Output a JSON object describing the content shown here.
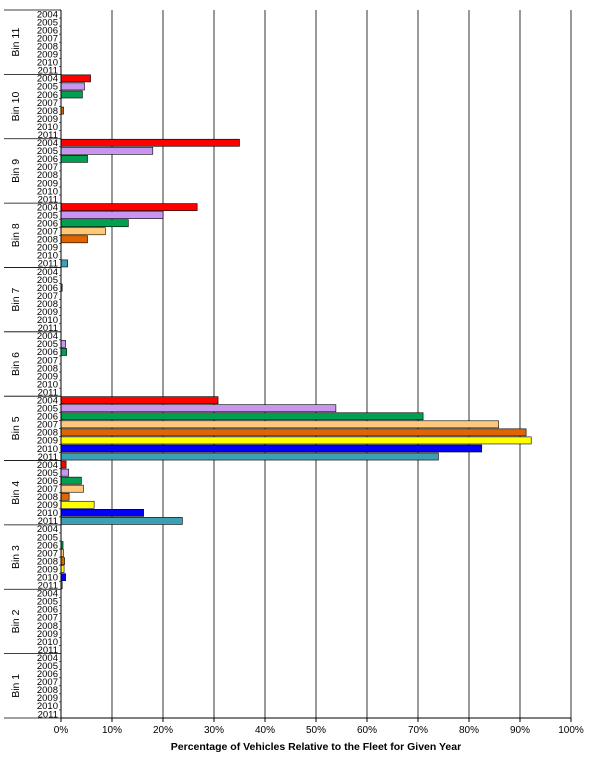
{
  "chart_data": {
    "type": "bar",
    "orientation": "horizontal",
    "xlabel": "Percentage of Vehicles Relative to the Fleet for Given Year",
    "xlim": [
      0,
      100
    ],
    "x_ticks": [
      "0%",
      "10%",
      "20%",
      "30%",
      "40%",
      "50%",
      "60%",
      "70%",
      "80%",
      "90%",
      "100%"
    ],
    "grid": "vertical",
    "years": [
      "2004",
      "2005",
      "2006",
      "2007",
      "2008",
      "2009",
      "2010",
      "2011"
    ],
    "year_colors": {
      "2004": "#ff0000",
      "2005": "#c896f0",
      "2006": "#00a050",
      "2007": "#ffc878",
      "2008": "#e06400",
      "2009": "#ffff00",
      "2010": "#0000ff",
      "2011": "#3ca0b4"
    },
    "groups": [
      {
        "name": "Bin 11",
        "values": [
          0,
          0,
          0,
          0,
          0,
          0,
          0,
          0
        ]
      },
      {
        "name": "Bin 10",
        "values": [
          5.8,
          4.6,
          4.2,
          0,
          0.5,
          0,
          0,
          0
        ]
      },
      {
        "name": "Bin 9",
        "values": [
          35,
          18,
          5.2,
          0,
          0,
          0,
          0,
          0
        ]
      },
      {
        "name": "Bin 8",
        "values": [
          26.7,
          20,
          13.2,
          8.7,
          5.2,
          0,
          0,
          1.3
        ]
      },
      {
        "name": "Bin 7",
        "values": [
          0,
          0,
          0.2,
          0,
          0,
          0,
          0,
          0
        ]
      },
      {
        "name": "Bin 6",
        "values": [
          0,
          0.9,
          1.1,
          0,
          0,
          0,
          0,
          0
        ]
      },
      {
        "name": "Bin 5",
        "values": [
          30.8,
          53.9,
          71,
          85.8,
          91.2,
          92.2,
          82.5,
          74
        ]
      },
      {
        "name": "Bin 4",
        "values": [
          1,
          1.5,
          4,
          4.4,
          1.6,
          6.5,
          16.2,
          23.8
        ]
      },
      {
        "name": "Bin 3",
        "values": [
          0,
          0,
          0.4,
          0.5,
          0.7,
          0.6,
          0.9,
          0.2
        ]
      },
      {
        "name": "Bin 2",
        "values": [
          0,
          0,
          0,
          0,
          0,
          0,
          0,
          0
        ]
      },
      {
        "name": "Bin 1",
        "values": [
          0,
          0,
          0,
          0,
          0,
          0,
          0,
          0
        ]
      }
    ]
  }
}
